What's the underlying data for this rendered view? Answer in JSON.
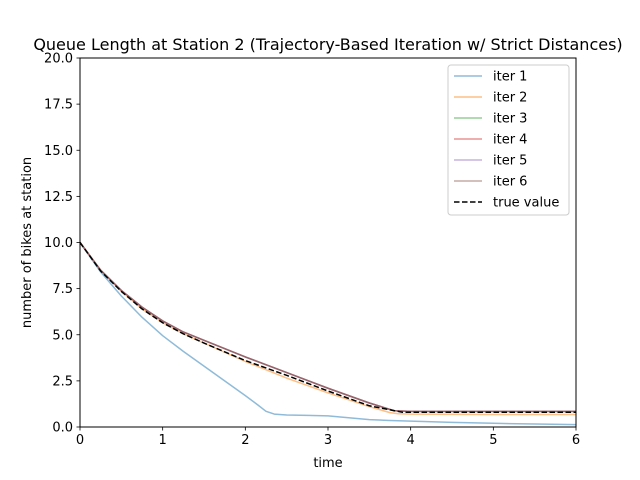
{
  "chart_data": {
    "type": "line",
    "title": "Queue Length at Station 2 (Trajectory-Based Iteration w/ Strict Distances)",
    "xlabel": "time",
    "ylabel": "number of bikes at station",
    "xlim": [
      0,
      6
    ],
    "ylim": [
      0,
      20
    ],
    "xticks": [
      "0",
      "1",
      "2",
      "3",
      "4",
      "5",
      "6"
    ],
    "yticks": [
      "0.0",
      "2.5",
      "5.0",
      "7.5",
      "10.0",
      "12.5",
      "15.0",
      "17.5",
      "20.0"
    ],
    "grid": false,
    "legend_position": "top-right",
    "series": [
      {
        "name": "iter 1",
        "color": "#1f77b4",
        "dashed": false,
        "alpha": 0.5,
        "points": [
          [
            0,
            10.0
          ],
          [
            0.25,
            8.4
          ],
          [
            0.5,
            7.1
          ],
          [
            0.75,
            5.95
          ],
          [
            1.0,
            4.95
          ],
          [
            1.25,
            4.1
          ],
          [
            1.5,
            3.3
          ],
          [
            1.75,
            2.5
          ],
          [
            2.0,
            1.7
          ],
          [
            2.15,
            1.2
          ],
          [
            2.25,
            0.85
          ],
          [
            2.35,
            0.7
          ],
          [
            2.5,
            0.65
          ],
          [
            2.75,
            0.63
          ],
          [
            3.0,
            0.6
          ],
          [
            3.25,
            0.5
          ],
          [
            3.5,
            0.4
          ],
          [
            3.75,
            0.35
          ],
          [
            4.0,
            0.32
          ],
          [
            4.5,
            0.25
          ],
          [
            5.0,
            0.2
          ],
          [
            5.5,
            0.16
          ],
          [
            6.0,
            0.13
          ]
        ]
      },
      {
        "name": "iter 2",
        "color": "#ff7f0e",
        "dashed": false,
        "alpha": 0.5,
        "points": [
          [
            0,
            10.0
          ],
          [
            0.25,
            8.5
          ],
          [
            0.5,
            7.35
          ],
          [
            0.75,
            6.4
          ],
          [
            1.0,
            5.65
          ],
          [
            1.25,
            5.05
          ],
          [
            1.5,
            4.55
          ],
          [
            2.0,
            3.55
          ],
          [
            2.5,
            2.65
          ],
          [
            3.0,
            1.85
          ],
          [
            3.5,
            1.1
          ],
          [
            3.75,
            0.78
          ],
          [
            3.85,
            0.72
          ],
          [
            4.0,
            0.7
          ],
          [
            5.0,
            0.68
          ],
          [
            6.0,
            0.68
          ]
        ]
      },
      {
        "name": "iter 3",
        "color": "#2ca02c",
        "dashed": false,
        "alpha": 0.5,
        "points": [
          [
            0,
            10.0
          ],
          [
            0.25,
            8.5
          ],
          [
            0.5,
            7.4
          ],
          [
            0.75,
            6.5
          ],
          [
            1.0,
            5.75
          ],
          [
            1.25,
            5.15
          ],
          [
            1.5,
            4.7
          ],
          [
            2.0,
            3.8
          ],
          [
            2.5,
            2.95
          ],
          [
            3.0,
            2.1
          ],
          [
            3.5,
            1.3
          ],
          [
            3.8,
            0.88
          ],
          [
            4.0,
            0.85
          ],
          [
            5.0,
            0.85
          ],
          [
            6.0,
            0.85
          ]
        ]
      },
      {
        "name": "iter 4",
        "color": "#d62728",
        "dashed": false,
        "alpha": 0.5,
        "points": [
          [
            0,
            10.0
          ],
          [
            0.25,
            8.5
          ],
          [
            0.5,
            7.4
          ],
          [
            0.75,
            6.5
          ],
          [
            1.0,
            5.75
          ],
          [
            1.25,
            5.15
          ],
          [
            1.5,
            4.7
          ],
          [
            2.0,
            3.8
          ],
          [
            2.5,
            2.95
          ],
          [
            3.0,
            2.1
          ],
          [
            3.5,
            1.3
          ],
          [
            3.8,
            0.88
          ],
          [
            4.0,
            0.85
          ],
          [
            5.0,
            0.85
          ],
          [
            6.0,
            0.85
          ]
        ]
      },
      {
        "name": "iter 5",
        "color": "#9467bd",
        "dashed": false,
        "alpha": 0.5,
        "points": [
          [
            0,
            10.0
          ],
          [
            0.25,
            8.5
          ],
          [
            0.5,
            7.4
          ],
          [
            0.75,
            6.5
          ],
          [
            1.0,
            5.75
          ],
          [
            1.25,
            5.15
          ],
          [
            1.5,
            4.7
          ],
          [
            2.0,
            3.8
          ],
          [
            2.5,
            2.95
          ],
          [
            3.0,
            2.1
          ],
          [
            3.5,
            1.3
          ],
          [
            3.8,
            0.88
          ],
          [
            4.0,
            0.85
          ],
          [
            5.0,
            0.85
          ],
          [
            6.0,
            0.85
          ]
        ]
      },
      {
        "name": "iter 6",
        "color": "#8c564b",
        "dashed": false,
        "alpha": 0.5,
        "points": [
          [
            0,
            10.0
          ],
          [
            0.25,
            8.5
          ],
          [
            0.5,
            7.4
          ],
          [
            0.75,
            6.5
          ],
          [
            1.0,
            5.75
          ],
          [
            1.25,
            5.15
          ],
          [
            1.5,
            4.7
          ],
          [
            2.0,
            3.8
          ],
          [
            2.5,
            2.95
          ],
          [
            3.0,
            2.1
          ],
          [
            3.5,
            1.3
          ],
          [
            3.8,
            0.88
          ],
          [
            4.0,
            0.85
          ],
          [
            5.0,
            0.85
          ],
          [
            6.0,
            0.85
          ]
        ]
      },
      {
        "name": "true value",
        "color": "#000000",
        "dashed": true,
        "alpha": 1.0,
        "points": [
          [
            0,
            10.0
          ],
          [
            0.25,
            8.45
          ],
          [
            0.5,
            7.35
          ],
          [
            0.75,
            6.4
          ],
          [
            1.0,
            5.65
          ],
          [
            1.25,
            5.05
          ],
          [
            1.5,
            4.55
          ],
          [
            2.0,
            3.6
          ],
          [
            2.5,
            2.8
          ],
          [
            3.0,
            1.95
          ],
          [
            3.5,
            1.15
          ],
          [
            3.9,
            0.8
          ],
          [
            4.0,
            0.8
          ],
          [
            5.0,
            0.8
          ],
          [
            6.0,
            0.8
          ]
        ]
      }
    ]
  }
}
